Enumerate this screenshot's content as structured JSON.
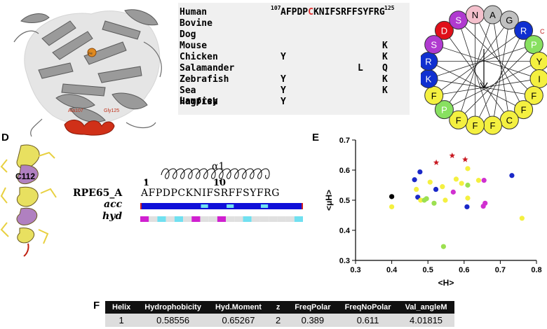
{
  "panels": {
    "d": "D",
    "e": "E",
    "f": "F"
  },
  "structure": {
    "residue_label": "C112",
    "ala_label": "Ala107",
    "gly_label": "Gly125",
    "fe_label": "Fe"
  },
  "alignment": {
    "start_num": "107",
    "end_num": "125",
    "human_prefix": "AFPDP",
    "human_c": "C",
    "human_suffix": "KNIFSRFFSYFRG",
    "rows": [
      {
        "name": "Human",
        "subs": []
      },
      {
        "name": "Bovine",
        "subs": []
      },
      {
        "name": "Dog",
        "subs": []
      },
      {
        "name": "Mouse",
        "subs": [
          {
            "col": 18,
            "aa": "K"
          }
        ]
      },
      {
        "name": "Chicken",
        "subs": [
          {
            "col": 6,
            "aa": "Y"
          },
          {
            "col": 18,
            "aa": "K"
          }
        ]
      },
      {
        "name": "Salamander",
        "subs": [
          {
            "col": 15,
            "aa": "L"
          },
          {
            "col": 18,
            "aa": "Q"
          }
        ]
      },
      {
        "name": "Zebrafish",
        "subs": [
          {
            "col": 6,
            "aa": "Y"
          },
          {
            "col": 18,
            "aa": "K"
          }
        ]
      },
      {
        "name": "Sea Lamprey",
        "subs": [
          {
            "col": 6,
            "aa": "Y"
          },
          {
            "col": 18,
            "aa": "K"
          }
        ]
      },
      {
        "name": "Hagfish",
        "subs": [
          {
            "col": 6,
            "aa": "Y"
          }
        ]
      }
    ]
  },
  "wheel": {
    "residues": [
      {
        "aa": "D",
        "color": "#e0101a",
        "text": "#ffffff"
      },
      {
        "aa": "S",
        "color": "#b03ad0",
        "text": "#ffffff"
      },
      {
        "aa": "N",
        "color": "#f4c0cc",
        "text": "#000000"
      },
      {
        "aa": "A",
        "color": "#c0c0c0",
        "text": "#000000"
      },
      {
        "aa": "G",
        "color": "#c0c0c0",
        "text": "#000000"
      },
      {
        "aa": "R",
        "color": "#1030d0",
        "text": "#ffffff"
      },
      {
        "aa": "P",
        "color": "#88e060",
        "text": "#ffffff"
      },
      {
        "aa": "Y",
        "color": "#f4f040",
        "text": "#000000"
      },
      {
        "aa": "I",
        "color": "#f4f040",
        "text": "#000000"
      },
      {
        "aa": "F",
        "color": "#f4f040",
        "text": "#000000"
      },
      {
        "aa": "F",
        "color": "#f4f040",
        "text": "#000000"
      },
      {
        "aa": "C",
        "color": "#f4f040",
        "text": "#000000"
      },
      {
        "aa": "F",
        "color": "#f4f040",
        "text": "#000000"
      },
      {
        "aa": "F",
        "color": "#f4f040",
        "text": "#000000"
      },
      {
        "aa": "F",
        "color": "#f4f040",
        "text": "#000000"
      },
      {
        "aa": "P",
        "color": "#88e060",
        "text": "#ffffff"
      },
      {
        "aa": "F",
        "color": "#f4f040",
        "text": "#000000"
      },
      {
        "aa": "K",
        "color": "#1030d0",
        "text": "#ffffff"
      },
      {
        "aa": "R",
        "color": "#1030d0",
        "text": "#ffffff"
      },
      {
        "aa": "S",
        "color": "#b03ad0",
        "text": "#ffffff"
      }
    ],
    "n_label": "N",
    "c_label": "C"
  },
  "helix": {
    "alpha_label": "α1",
    "tick1": "1",
    "tick10": "10",
    "seq_name": "RPE65_A",
    "sequence": "AFPDPCKNIFSRFFSYFRG",
    "acc_label": "acc",
    "hyd_label": "hyd",
    "acc_highlight_positions": [
      8,
      11,
      15
    ],
    "hyd_pattern": [
      "#d020d0",
      "#e0e0e0",
      "#70e0f0",
      "#e0e0e0",
      "#70e0f0",
      "#e0e0e0",
      "#d020d0",
      "#e0e0e0",
      "#e0e0e0",
      "#d020d0",
      "#e0e0e0",
      "#e0e0e0",
      "#70e0f0",
      "#e0e0e0",
      "#e0e0e0",
      "#e0e0e0",
      "#e0e0e0",
      "#e0e0e0",
      "#70e0f0"
    ]
  },
  "chart_data": {
    "type": "scatter",
    "xlabel": "<H>",
    "ylabel": "<μH>",
    "xlim": [
      0.3,
      0.8
    ],
    "ylim": [
      0.3,
      0.7
    ],
    "xticks": [
      "0.3",
      "0.4",
      "0.5",
      "0.6",
      "0.7",
      "0.8"
    ],
    "yticks": [
      "0.3",
      "0.4",
      "0.5",
      "0.6",
      "0.7"
    ],
    "points": [
      {
        "x": 0.4,
        "y": 0.512,
        "color": "#000000",
        "shape": "circle"
      },
      {
        "x": 0.4,
        "y": 0.478,
        "color": "#f4f040",
        "shape": "circle"
      },
      {
        "x": 0.463,
        "y": 0.568,
        "color": "#1a28c8",
        "shape": "circle"
      },
      {
        "x": 0.478,
        "y": 0.594,
        "color": "#1a28c8",
        "shape": "circle"
      },
      {
        "x": 0.468,
        "y": 0.536,
        "color": "#f4f040",
        "shape": "circle"
      },
      {
        "x": 0.472,
        "y": 0.51,
        "color": "#1a28c8",
        "shape": "circle"
      },
      {
        "x": 0.48,
        "y": 0.5,
        "color": "#f4f040",
        "shape": "circle"
      },
      {
        "x": 0.49,
        "y": 0.5,
        "color": "#9ce050",
        "shape": "circle"
      },
      {
        "x": 0.496,
        "y": 0.505,
        "color": "#9ce050",
        "shape": "circle"
      },
      {
        "x": 0.506,
        "y": 0.56,
        "color": "#f4f040",
        "shape": "circle"
      },
      {
        "x": 0.517,
        "y": 0.49,
        "color": "#9ce050",
        "shape": "circle"
      },
      {
        "x": 0.522,
        "y": 0.536,
        "color": "#1a28c8",
        "shape": "circle"
      },
      {
        "x": 0.54,
        "y": 0.545,
        "color": "#f4f040",
        "shape": "circle"
      },
      {
        "x": 0.543,
        "y": 0.346,
        "color": "#9ce050",
        "shape": "circle"
      },
      {
        "x": 0.548,
        "y": 0.5,
        "color": "#f4f040",
        "shape": "circle"
      },
      {
        "x": 0.57,
        "y": 0.527,
        "color": "#d030d0",
        "shape": "circle"
      },
      {
        "x": 0.578,
        "y": 0.57,
        "color": "#f4f040",
        "shape": "circle"
      },
      {
        "x": 0.593,
        "y": 0.556,
        "color": "#f4f040",
        "shape": "circle"
      },
      {
        "x": 0.608,
        "y": 0.478,
        "color": "#1a28c8",
        "shape": "circle"
      },
      {
        "x": 0.61,
        "y": 0.55,
        "color": "#9ce050",
        "shape": "circle"
      },
      {
        "x": 0.61,
        "y": 0.605,
        "color": "#f4f040",
        "shape": "circle"
      },
      {
        "x": 0.61,
        "y": 0.507,
        "color": "#f4f040",
        "shape": "circle"
      },
      {
        "x": 0.64,
        "y": 0.566,
        "color": "#f4f040",
        "shape": "circle"
      },
      {
        "x": 0.653,
        "y": 0.48,
        "color": "#d030d0",
        "shape": "circle"
      },
      {
        "x": 0.655,
        "y": 0.566,
        "color": "#d030d0",
        "shape": "circle"
      },
      {
        "x": 0.658,
        "y": 0.49,
        "color": "#d030d0",
        "shape": "circle"
      },
      {
        "x": 0.732,
        "y": 0.582,
        "color": "#1a28c8",
        "shape": "circle"
      },
      {
        "x": 0.76,
        "y": 0.44,
        "color": "#f4f040",
        "shape": "circle"
      },
      {
        "x": 0.523,
        "y": 0.625,
        "color": "#c81820",
        "shape": "star"
      },
      {
        "x": 0.567,
        "y": 0.648,
        "color": "#c81820",
        "shape": "star"
      },
      {
        "x": 0.603,
        "y": 0.635,
        "color": "#c81820",
        "shape": "star"
      }
    ]
  },
  "table": {
    "headers": [
      "Helix",
      "Hydrophobicity",
      "Hyd.Moment",
      "z",
      "FreqPolar",
      "FreqNoPolar",
      "Val_angleM"
    ],
    "row": [
      "1",
      "0.58556",
      "0.65267",
      "2",
      "0.389",
      "0.611",
      "4.01815"
    ]
  }
}
